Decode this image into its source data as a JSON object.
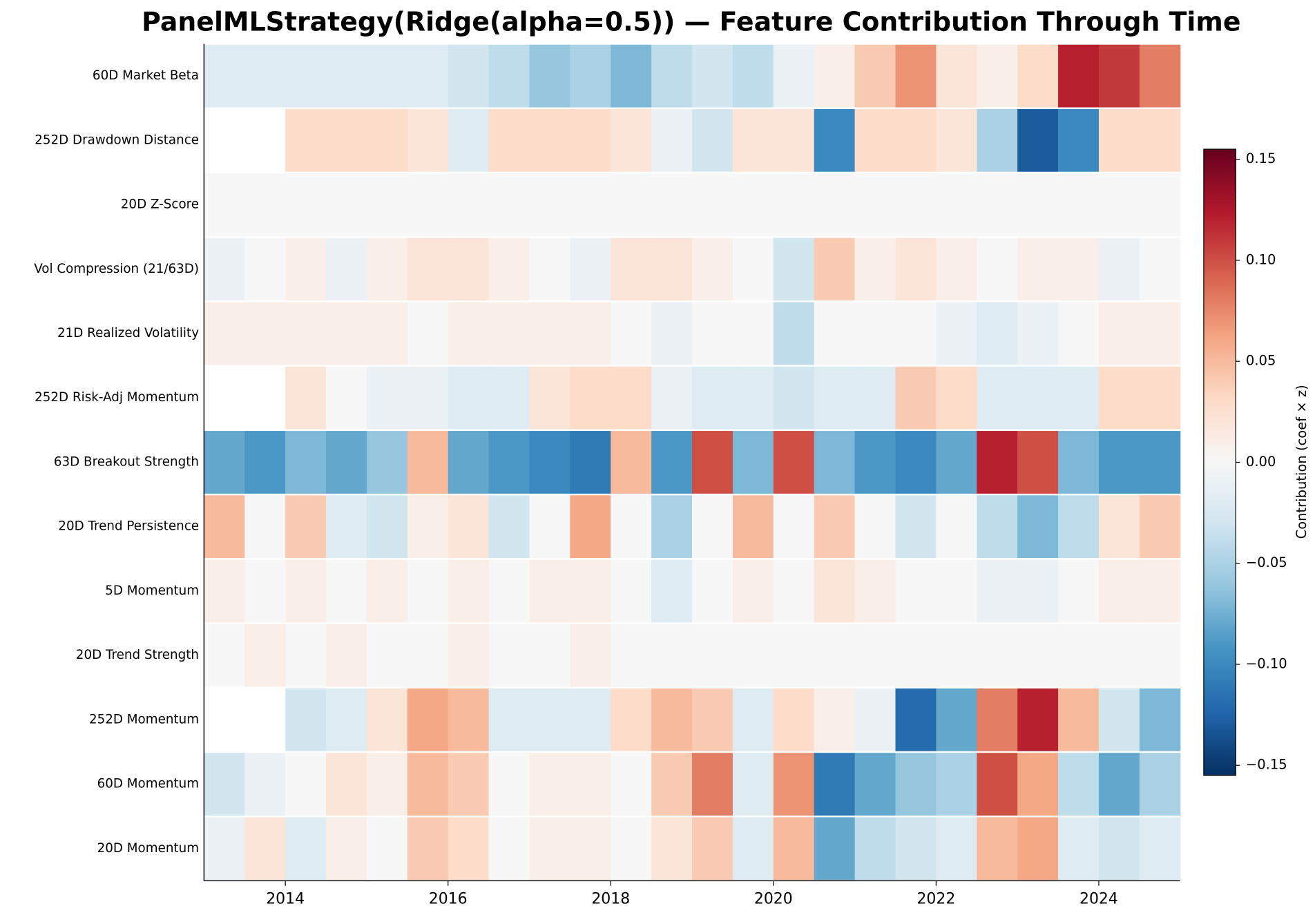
{
  "chart_data": {
    "type": "heatmap",
    "title": "PanelMLStrategy(Ridge(alpha=0.5)) — Feature Contribution Through Time",
    "features": [
      "60D Market Beta",
      "252D Drawdown Distance",
      "20D Z-Score",
      "Vol Compression (21/63D)",
      "21D Realized Volatility",
      "252D Risk-Adj Momentum",
      "63D Breakout Strength",
      "20D Trend Persistence",
      "5D Momentum",
      "20D Trend Strength",
      "252D Momentum",
      "60D Momentum",
      "20D Momentum"
    ],
    "bins": [
      2013.0,
      2013.5,
      2014.0,
      2014.5,
      2015.0,
      2015.5,
      2016.0,
      2016.5,
      2017.0,
      2017.5,
      2018.0,
      2018.5,
      2019.0,
      2019.5,
      2020.0,
      2020.5,
      2021.0,
      2021.5,
      2022.0,
      2022.5,
      2023.0,
      2023.5,
      2024.0,
      2024.5,
      2025.0
    ],
    "values": [
      [
        -0.02,
        -0.02,
        -0.02,
        -0.02,
        -0.02,
        -0.02,
        -0.03,
        -0.04,
        -0.06,
        -0.05,
        -0.07,
        -0.04,
        -0.03,
        -0.04,
        -0.01,
        0.01,
        0.04,
        0.07,
        0.02,
        0.01,
        0.03,
        0.12,
        0.11,
        0.08
      ],
      [
        null,
        null,
        0.03,
        0.03,
        0.03,
        0.02,
        -0.02,
        0.03,
        0.03,
        0.03,
        0.02,
        -0.01,
        -0.03,
        0.02,
        0.02,
        -0.1,
        0.03,
        0.03,
        0.02,
        -0.05,
        -0.13,
        -0.1,
        0.03,
        0.03
      ],
      [
        0,
        0,
        0,
        0,
        0,
        0,
        0,
        0,
        0,
        0,
        0,
        0,
        0,
        0,
        0,
        0,
        0,
        0,
        0,
        0,
        0,
        0,
        0,
        0
      ],
      [
        -0.01,
        0,
        0.01,
        -0.01,
        0.01,
        0.02,
        0.02,
        0.01,
        0,
        -0.01,
        0.02,
        0.02,
        0.01,
        0,
        -0.03,
        0.04,
        0.01,
        0.02,
        0.01,
        0,
        0.01,
        0.01,
        -0.01,
        0
      ],
      [
        0.01,
        0.01,
        0.01,
        0.01,
        0.01,
        0,
        0.01,
        0.01,
        0.01,
        0.01,
        0,
        -0.01,
        0,
        0,
        -0.04,
        0,
        0,
        0,
        -0.01,
        -0.02,
        -0.01,
        0,
        0.01,
        0.01
      ],
      [
        null,
        null,
        0.02,
        0,
        -0.01,
        -0.01,
        -0.02,
        -0.02,
        0.02,
        0.03,
        0.03,
        -0.01,
        -0.02,
        -0.02,
        -0.03,
        -0.02,
        -0.02,
        0.04,
        0.03,
        -0.02,
        -0.02,
        -0.02,
        0.03,
        0.03
      ],
      [
        -0.08,
        -0.09,
        -0.07,
        -0.08,
        -0.06,
        0.05,
        -0.08,
        -0.09,
        -0.1,
        -0.11,
        0.05,
        -0.09,
        0.1,
        -0.07,
        0.1,
        -0.07,
        -0.09,
        -0.1,
        -0.08,
        0.12,
        0.1,
        -0.07,
        -0.09,
        -0.09
      ],
      [
        0.05,
        0,
        0.04,
        -0.02,
        -0.03,
        0.01,
        0.02,
        -0.03,
        0,
        0.06,
        0,
        -0.05,
        0,
        0.05,
        0,
        0.04,
        0,
        -0.03,
        0,
        -0.04,
        -0.07,
        -0.04,
        0.02,
        0.04
      ],
      [
        0.01,
        0,
        0.01,
        0,
        0.01,
        0,
        0.01,
        0,
        0.01,
        0.01,
        0,
        -0.02,
        0,
        0.01,
        0,
        0.02,
        0.01,
        0,
        0,
        -0.01,
        -0.01,
        0,
        0.01,
        0.01
      ],
      [
        0,
        0.01,
        0,
        0.01,
        0,
        0,
        0.01,
        0,
        0,
        0.01,
        0,
        0,
        0,
        0,
        0,
        0,
        0,
        0,
        0,
        0,
        0,
        0,
        0,
        0
      ],
      [
        null,
        null,
        -0.03,
        -0.02,
        0.02,
        0.06,
        0.05,
        -0.02,
        -0.02,
        -0.02,
        0.03,
        0.05,
        0.04,
        -0.02,
        0.03,
        0.01,
        -0.01,
        -0.12,
        -0.08,
        0.08,
        0.12,
        0.05,
        -0.03,
        -0.07
      ],
      [
        -0.03,
        -0.01,
        0,
        0.02,
        0.01,
        0.05,
        0.04,
        0,
        0.01,
        0.01,
        0,
        0.04,
        0.08,
        -0.02,
        0.07,
        -0.11,
        -0.08,
        -0.06,
        -0.05,
        0.1,
        0.06,
        -0.04,
        -0.08,
        -0.05
      ],
      [
        -0.01,
        0.02,
        -0.02,
        0.01,
        0,
        0.04,
        0.03,
        0,
        0.01,
        0.01,
        0,
        0.02,
        0.04,
        -0.02,
        0.05,
        -0.08,
        -0.04,
        -0.03,
        -0.02,
        0.05,
        0.06,
        -0.02,
        -0.03,
        -0.02
      ]
    ],
    "xlim": [
      2013.0,
      2025.0
    ],
    "xticks": [
      2014,
      2016,
      2018,
      2020,
      2022,
      2024
    ],
    "clim": [
      -0.155,
      0.155
    ],
    "colorscale": [
      "#053061",
      "#2166ac",
      "#4393c3",
      "#92c5de",
      "#d1e5f0",
      "#f7f7f7",
      "#fddbc7",
      "#f4a582",
      "#d6604d",
      "#b2182b",
      "#67001f"
    ],
    "colorbar_label": "Contribution (coef × z)",
    "colorbar_ticks": [
      {
        "value": -0.15,
        "label": "−0.15"
      },
      {
        "value": -0.1,
        "label": "−0.10"
      },
      {
        "value": -0.05,
        "label": "−0.05"
      },
      {
        "value": 0,
        "label": "0.00"
      },
      0.05,
      {
        "value": 0.1,
        "label": "0.10"
      },
      0.15
    ]
  }
}
